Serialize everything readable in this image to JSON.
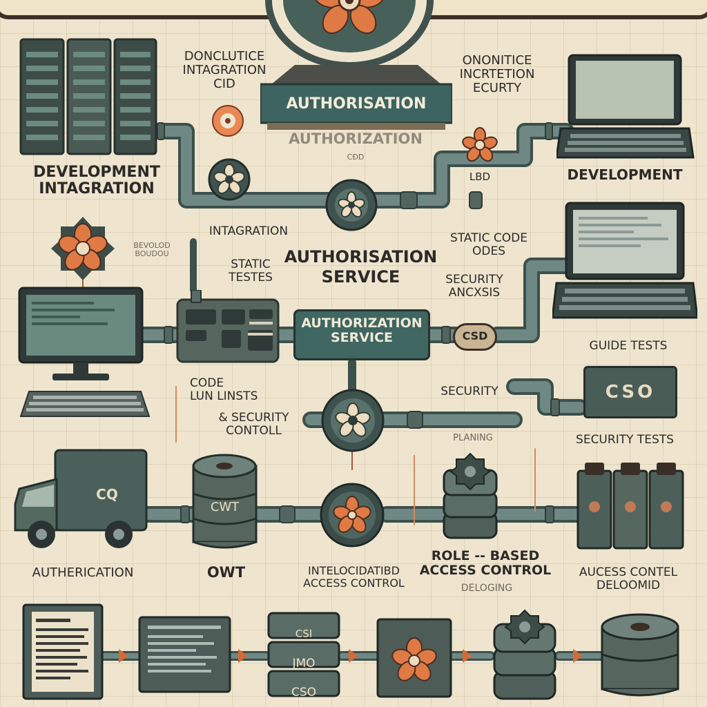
{
  "banner": {
    "authorisation_plaque": "AUTHORISATION",
    "authorisation_shadow": "AUTHORIZATION",
    "plaque_subtext": "CÐD"
  },
  "labels": {
    "top_left_block": "DONCLUTICE\nINTAGRATION\nCID",
    "top_right_block": "ONONITICE\nINCRTETION\nECURTY",
    "development_integration": "DEVELOPMENT\nINTAGRATION",
    "development": "DEVELOPMENT",
    "lbd_tag": "LBD",
    "intagration": "INTAGRATION",
    "static_tests": "STATIC\nTESTES",
    "authorisation_service": "AUTHORISATION\nSERVICE",
    "static_code": "STATIC CODE\nODES",
    "security_analysis": "SECURITY\nANCXSIS",
    "small_left_note": "BEVOLOD\nBOUDOU",
    "code_lints": "CODE\nLUN LINSTS",
    "security_control": "& SECURITY\nCONTOLL",
    "security_plain": "SECURITY",
    "security_sub": "PLANING",
    "guide_tests": "GUIDE TESTS",
    "security_tests": "SECURITY TESTS",
    "authentication": "AUTHERICATION",
    "owt": "OWT",
    "intelocated": "INTELOCIDATIBD\nACCESS CONTROL",
    "role_based": "ROLE -- BASED\nACCESS CONTROL",
    "deloding": "DELOGING",
    "aucess_contel": "AUCESS CONTEL\nDELOOMID"
  },
  "box_labels": {
    "authorization_service_box": "AUTHORIZATION\nSERVICE",
    "csd_pill": "CSD",
    "cso_box": "CSO",
    "truck": "CQ",
    "db_cylinder": "CWT",
    "bottom_stack_top": "CSI",
    "bottom_stack_mid": "JMO",
    "bottom_stack_bot": "CSO"
  },
  "colors": {
    "background": "#efe5cf",
    "teal": "#47695e",
    "dark_teal": "#2f4b44",
    "orange": "#e07a45",
    "pipe": "#5f7773",
    "ink": "#2b2a28"
  },
  "icons": [
    "flower-gear-icon",
    "server-rack-icon",
    "laptop-icon",
    "monitor-icon",
    "keyboard-icon",
    "truck-icon",
    "database-icon",
    "gear-stack-icon",
    "document-icon",
    "valve-icon"
  ]
}
